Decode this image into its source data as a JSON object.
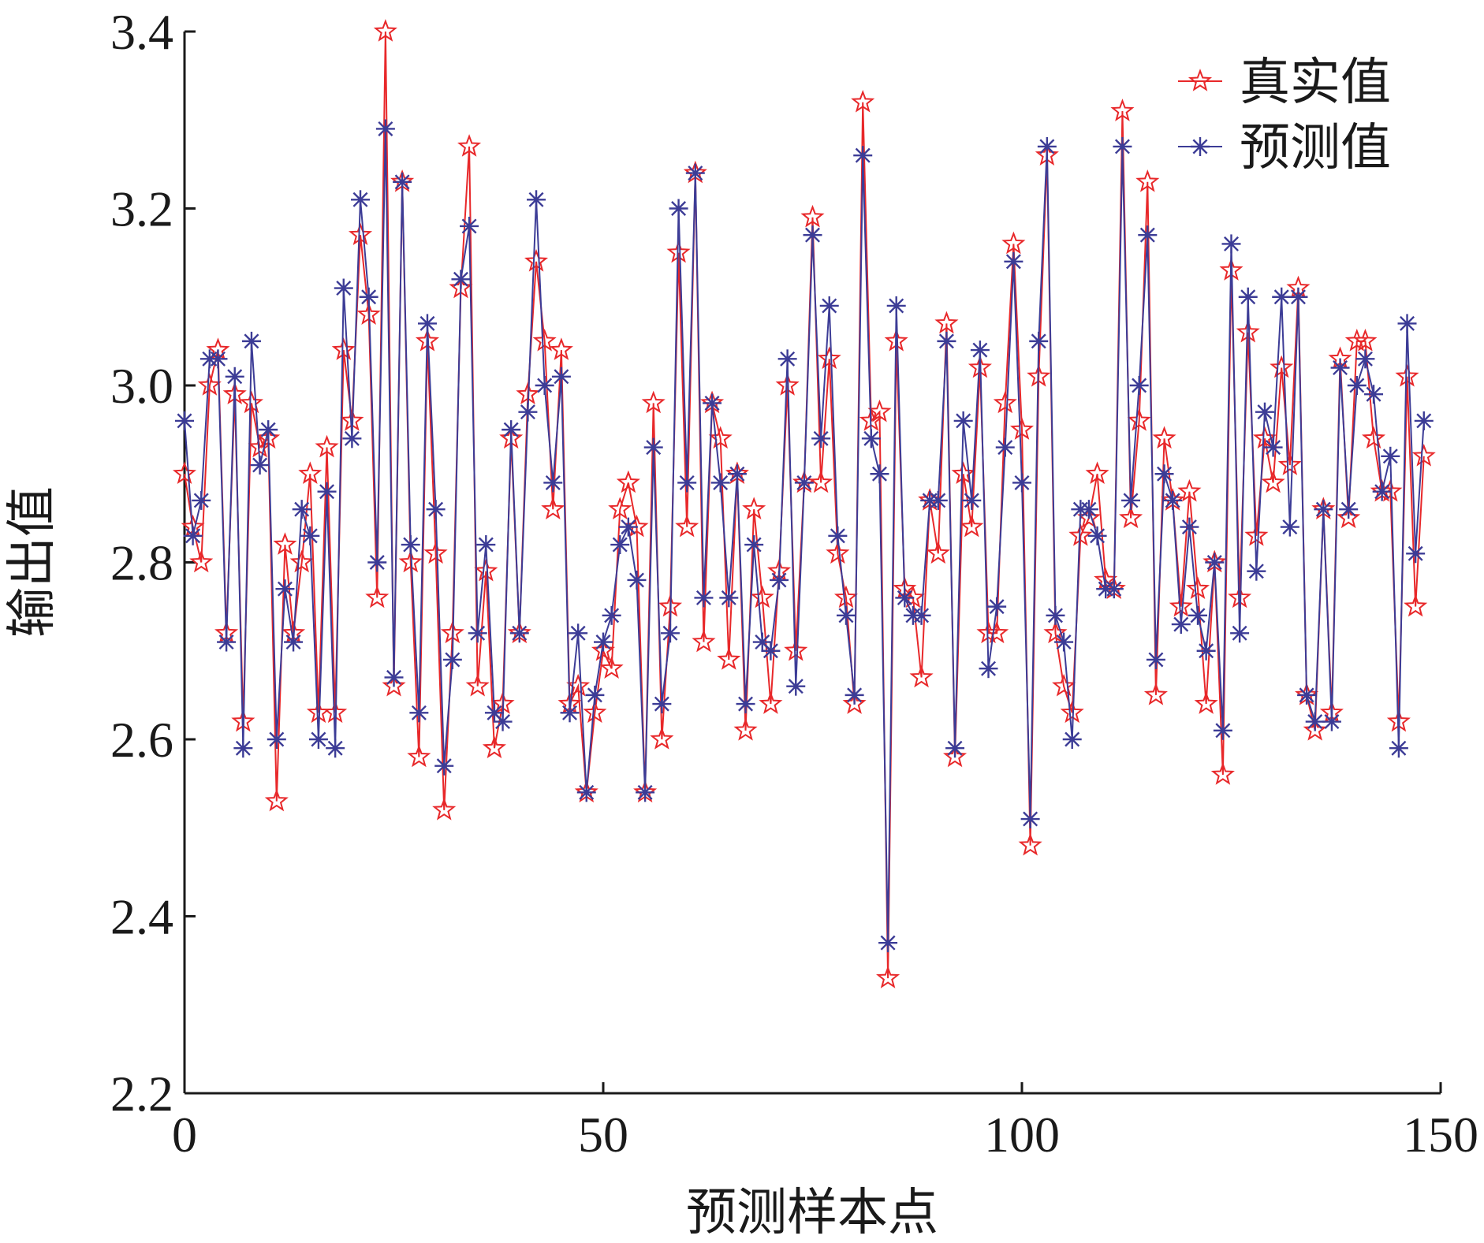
{
  "chart_data": {
    "type": "line",
    "xlabel": "预测样本点",
    "ylabel": "输出值",
    "xlim": [
      0,
      150
    ],
    "ylim": [
      2.2,
      3.4
    ],
    "xticks": [
      0,
      50,
      100,
      150
    ],
    "yticks": [
      2.2,
      2.4,
      2.6,
      2.8,
      3.0,
      3.2,
      3.4
    ],
    "ytick_labels": [
      "2.2",
      "2.4",
      "2.6",
      "2.8",
      "3.0",
      "3.2",
      "3.4"
    ],
    "xtick_labels": [
      "0",
      "50",
      "100",
      "150"
    ],
    "grid": false,
    "legend_position": "top-right",
    "series": [
      {
        "name": "真实值",
        "color": "#e8282a",
        "marker": "star",
        "values": [
          2.9,
          2.84,
          2.8,
          3.0,
          3.04,
          2.72,
          2.99,
          2.62,
          2.98,
          2.93,
          2.94,
          2.53,
          2.82,
          2.72,
          2.8,
          2.9,
          2.63,
          2.93,
          2.63,
          3.04,
          2.96,
          3.17,
          3.08,
          2.76,
          3.4,
          2.66,
          3.23,
          2.8,
          2.58,
          3.05,
          2.81,
          2.52,
          2.72,
          3.11,
          3.27,
          2.66,
          2.79,
          2.59,
          2.64,
          2.94,
          2.72,
          2.99,
          3.14,
          3.05,
          2.86,
          3.04,
          2.64,
          2.66,
          2.54,
          2.63,
          2.7,
          2.68,
          2.86,
          2.89,
          2.84,
          2.54,
          2.98,
          2.6,
          2.75,
          3.15,
          2.84,
          3.24,
          2.71,
          2.98,
          2.94,
          2.69,
          2.9,
          2.61,
          2.86,
          2.76,
          2.64,
          2.79,
          3.0,
          2.7,
          2.89,
          3.19,
          2.89,
          3.03,
          2.81,
          2.76,
          2.64,
          3.32,
          2.96,
          2.97,
          2.33,
          3.05,
          2.77,
          2.76,
          2.67,
          2.87,
          2.81,
          3.07,
          2.58,
          2.9,
          2.84,
          3.02,
          2.72,
          2.72,
          2.98,
          3.16,
          2.95,
          2.48,
          3.01,
          3.26,
          2.72,
          2.66,
          2.63,
          2.83,
          2.85,
          2.9,
          2.78,
          2.77,
          3.31,
          2.85,
          2.96,
          3.23,
          2.65,
          2.94,
          2.87,
          2.75,
          2.88,
          2.77,
          2.64,
          2.8,
          2.56,
          3.13,
          2.76,
          3.06,
          2.83,
          2.94,
          2.89,
          3.02,
          2.91,
          3.11,
          2.65,
          2.61,
          2.86,
          2.63,
          3.03,
          2.85,
          3.05,
          3.05,
          2.94,
          2.88,
          2.88,
          2.62,
          3.01,
          2.75,
          2.92
        ]
      },
      {
        "name": "预测值",
        "color": "#3c3c96",
        "marker": "asterisk",
        "values": [
          2.96,
          2.83,
          2.87,
          3.03,
          3.03,
          2.71,
          3.01,
          2.59,
          3.05,
          2.91,
          2.95,
          2.6,
          2.77,
          2.71,
          2.86,
          2.83,
          2.6,
          2.88,
          2.59,
          3.11,
          2.94,
          3.21,
          3.1,
          2.8,
          3.29,
          2.67,
          3.23,
          2.82,
          2.63,
          3.07,
          2.86,
          2.57,
          2.69,
          3.12,
          3.18,
          2.72,
          2.82,
          2.63,
          2.62,
          2.95,
          2.72,
          2.97,
          3.21,
          3.0,
          2.89,
          3.01,
          2.63,
          2.72,
          2.54,
          2.65,
          2.71,
          2.74,
          2.82,
          2.84,
          2.78,
          2.54,
          2.93,
          2.64,
          2.72,
          3.2,
          2.89,
          3.24,
          2.76,
          2.98,
          2.89,
          2.76,
          2.9,
          2.64,
          2.82,
          2.71,
          2.7,
          2.78,
          3.03,
          2.66,
          2.89,
          3.17,
          2.94,
          3.09,
          2.83,
          2.74,
          2.65,
          3.26,
          2.94,
          2.9,
          2.37,
          3.09,
          2.76,
          2.74,
          2.74,
          2.87,
          2.87,
          3.05,
          2.59,
          2.96,
          2.87,
          3.04,
          2.68,
          2.75,
          2.93,
          3.14,
          2.89,
          2.51,
          3.05,
          3.27,
          2.74,
          2.71,
          2.6,
          2.86,
          2.86,
          2.83,
          2.77,
          2.77,
          3.27,
          2.87,
          3.0,
          3.17,
          2.69,
          2.9,
          2.87,
          2.73,
          2.84,
          2.74,
          2.7,
          2.8,
          2.61,
          3.16,
          2.72,
          3.1,
          2.79,
          2.97,
          2.93,
          3.1,
          2.84,
          3.1,
          2.65,
          2.62,
          2.86,
          2.62,
          3.02,
          2.86,
          3.0,
          3.03,
          2.99,
          2.88,
          2.92,
          2.59,
          3.07,
          2.81,
          2.96
        ]
      }
    ]
  }
}
